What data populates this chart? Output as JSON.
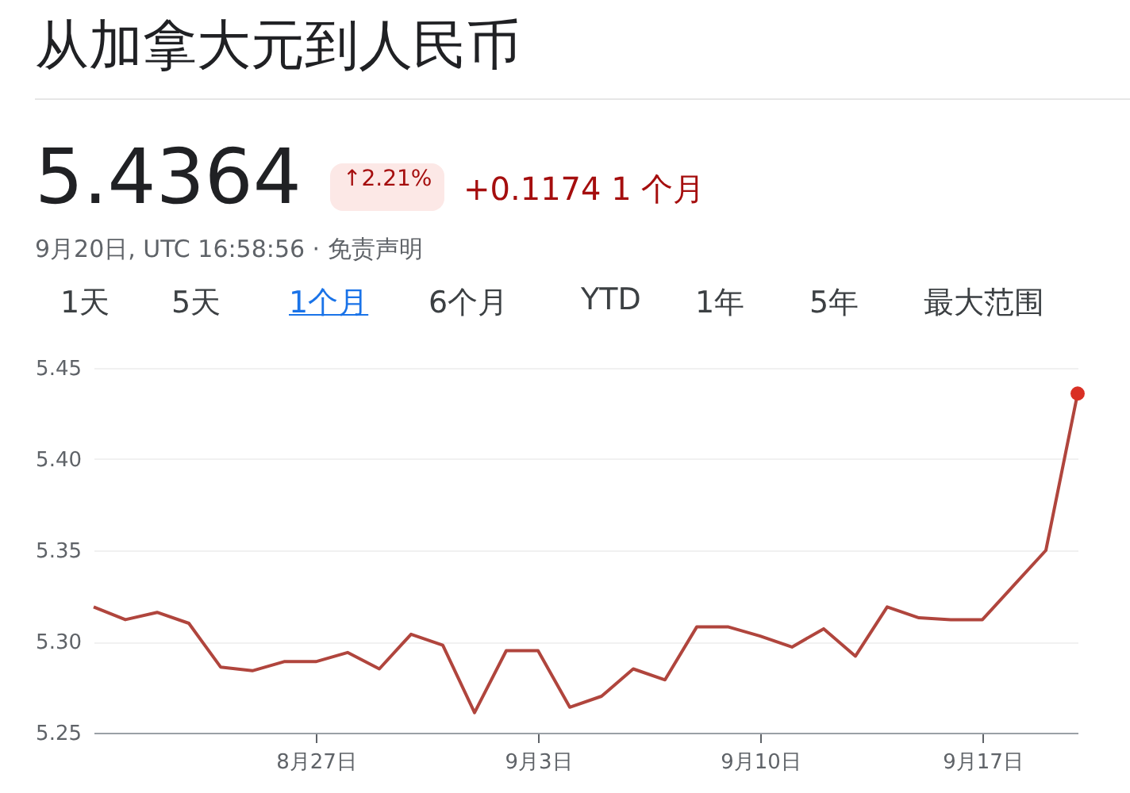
{
  "chart_data": {
    "type": "line",
    "title": "从加拿大元到人民币",
    "annotations": [
      "5.4364",
      "↑2.21%",
      "+0.1174 1 个月",
      "9月20日, UTC 16:58:56 · 免责声明",
      "1天",
      "5天",
      "1个月",
      "6个月",
      "YTD",
      "1年",
      "5年",
      "最大范围"
    ],
    "categories": [
      null,
      null,
      null,
      null,
      null,
      null,
      null,
      "8月27日",
      null,
      null,
      null,
      null,
      null,
      null,
      "9月3日",
      null,
      null,
      null,
      null,
      null,
      null,
      "9月10日",
      null,
      null,
      null,
      null,
      null,
      null,
      "9月17日",
      null,
      null,
      null
    ],
    "series": [
      {
        "color": "#b0453d",
        "values": [
          5.319,
          5.312,
          5.316,
          5.31,
          5.286,
          5.284,
          5.289,
          5.289,
          5.294,
          5.285,
          5.304,
          5.298,
          5.261,
          5.295,
          5.295,
          5.264,
          5.27,
          5.285,
          5.279,
          5.308,
          5.308,
          5.303,
          5.297,
          5.307,
          5.292,
          5.319,
          5.313,
          5.312,
          5.312,
          5.331,
          5.35,
          5.436
        ]
      }
    ],
    "ylim": [
      5.25,
      5.45
    ],
    "yticks": [
      {
        "value": 5.25,
        "label": "5.25"
      },
      {
        "value": 5.3,
        "label": "5.30"
      },
      {
        "value": 5.35,
        "label": "5.35"
      },
      {
        "value": 5.4,
        "label": "5.40"
      },
      {
        "value": 5.45,
        "label": "5.45"
      }
    ],
    "grid": "y"
  }
}
